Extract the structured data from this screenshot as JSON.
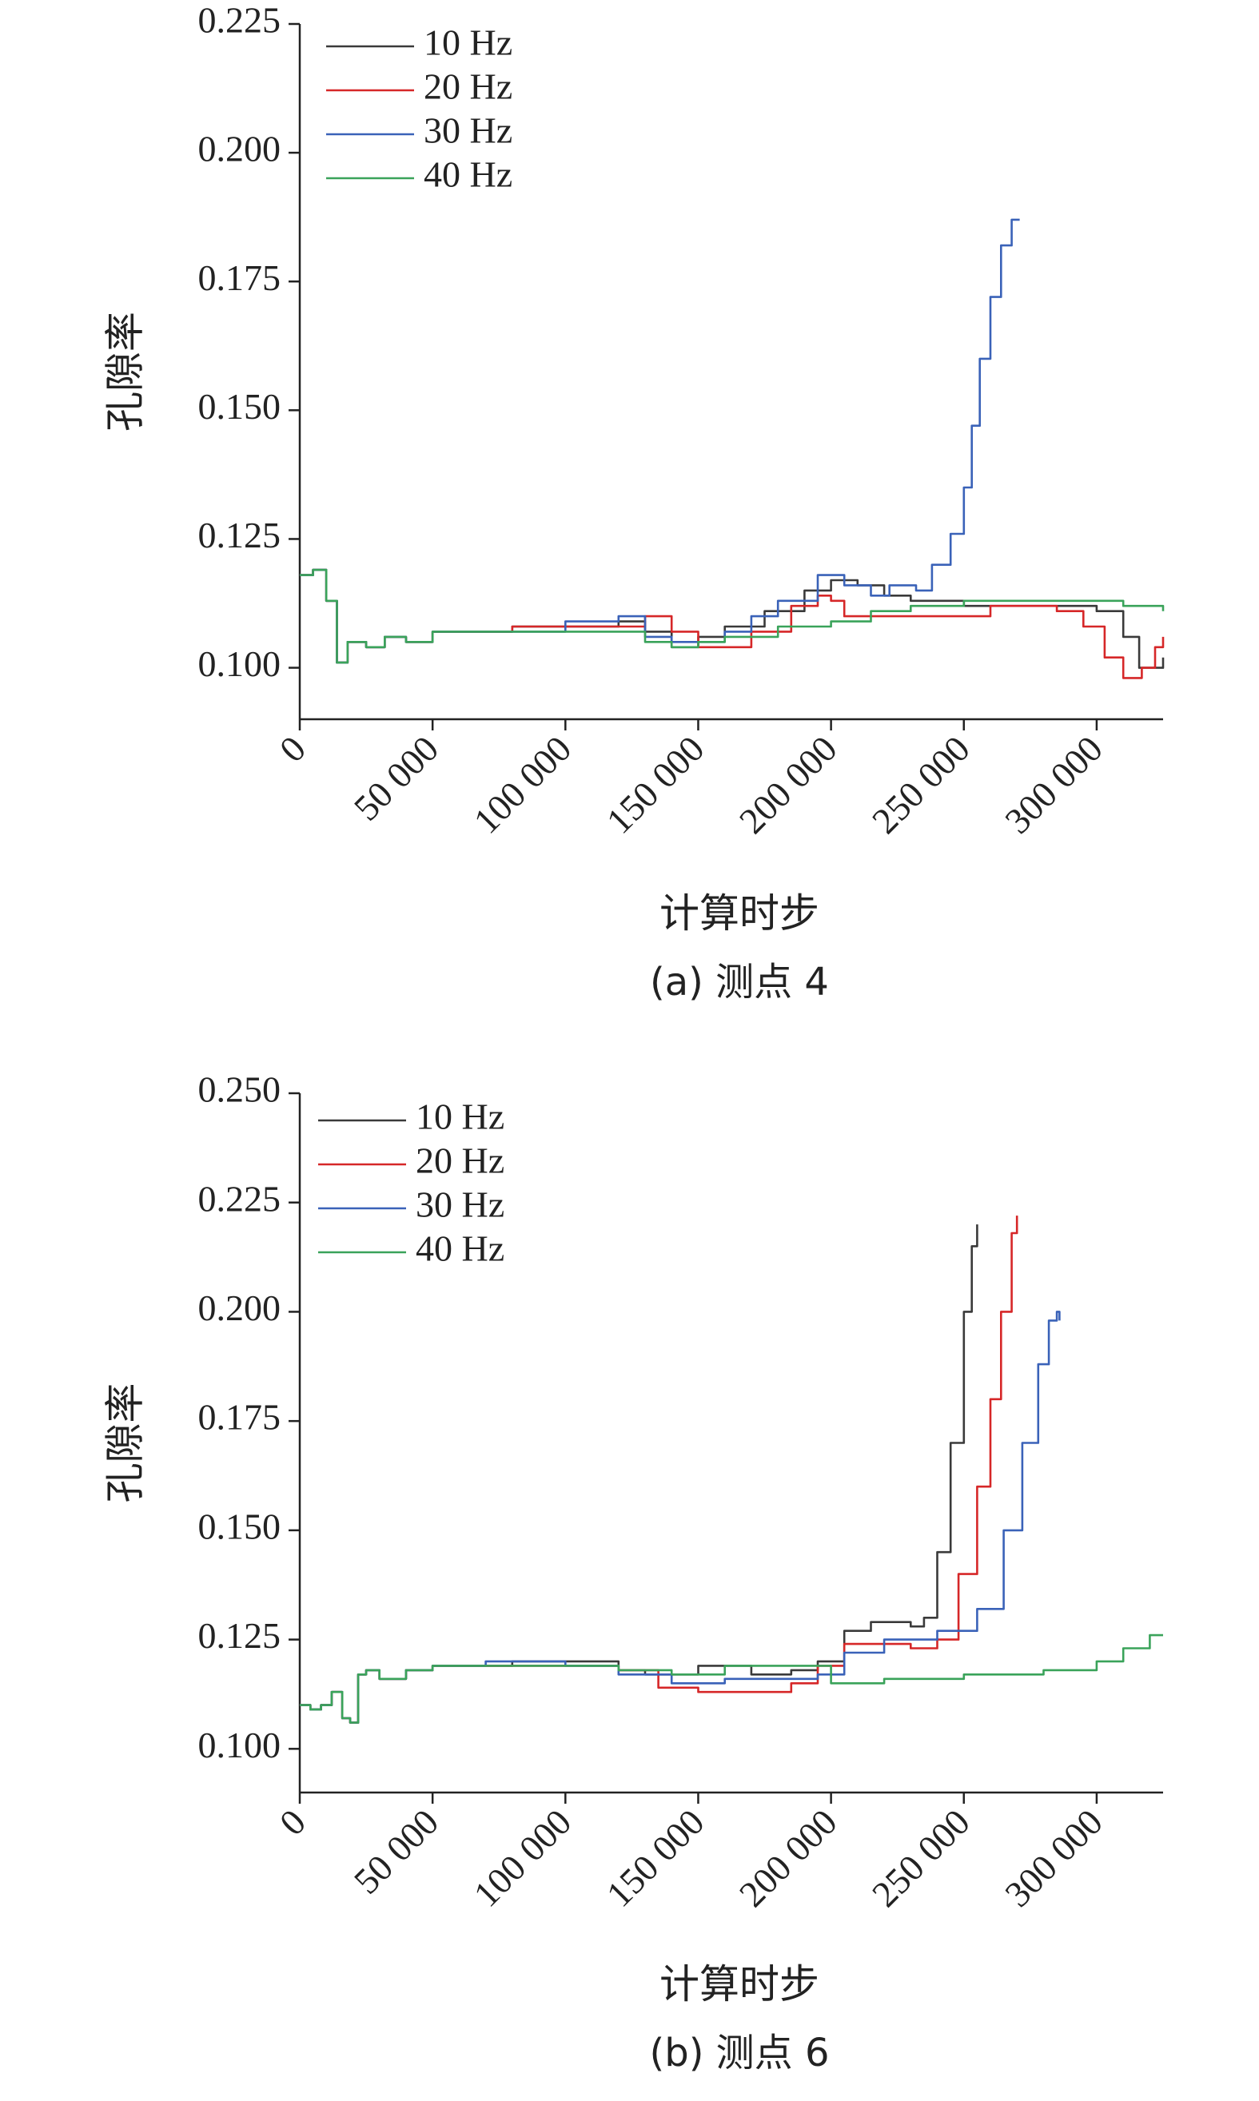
{
  "chart_data": [
    {
      "type": "line",
      "caption": "(a) 测点 4",
      "xlabel": "计算时步",
      "ylabel": "孔隙率",
      "xlim": [
        0,
        325000
      ],
      "ylim": [
        0.09,
        0.225
      ],
      "yticks": [
        "0.100",
        "0.125",
        "0.150",
        "0.175",
        "0.200",
        "0.225"
      ],
      "xticks": [
        "0",
        "50 000",
        "100 000",
        "150 000",
        "200 000",
        "250 000",
        "300 000"
      ],
      "legend_position": "top-left",
      "series": [
        {
          "name": "10 Hz",
          "color": "#3a3a3a",
          "points": [
            [
              0,
              0.118
            ],
            [
              5000,
              0.119
            ],
            [
              10000,
              0.113
            ],
            [
              14000,
              0.101
            ],
            [
              18000,
              0.105
            ],
            [
              25000,
              0.104
            ],
            [
              32000,
              0.106
            ],
            [
              40000,
              0.105
            ],
            [
              50000,
              0.107
            ],
            [
              80000,
              0.108
            ],
            [
              100000,
              0.108
            ],
            [
              120000,
              0.109
            ],
            [
              130000,
              0.107
            ],
            [
              140000,
              0.104
            ],
            [
              150000,
              0.106
            ],
            [
              160000,
              0.108
            ],
            [
              175000,
              0.111
            ],
            [
              190000,
              0.115
            ],
            [
              200000,
              0.117
            ],
            [
              210000,
              0.116
            ],
            [
              220000,
              0.114
            ],
            [
              230000,
              0.113
            ],
            [
              250000,
              0.112
            ],
            [
              280000,
              0.112
            ],
            [
              300000,
              0.111
            ],
            [
              310000,
              0.106
            ],
            [
              316000,
              0.1
            ],
            [
              320000,
              0.1
            ],
            [
              325000,
              0.102
            ]
          ]
        },
        {
          "name": "20 Hz",
          "color": "#d62728",
          "points": [
            [
              0,
              0.118
            ],
            [
              5000,
              0.119
            ],
            [
              10000,
              0.113
            ],
            [
              14000,
              0.101
            ],
            [
              18000,
              0.105
            ],
            [
              25000,
              0.104
            ],
            [
              32000,
              0.106
            ],
            [
              40000,
              0.105
            ],
            [
              50000,
              0.107
            ],
            [
              80000,
              0.108
            ],
            [
              100000,
              0.108
            ],
            [
              120000,
              0.108
            ],
            [
              130000,
              0.11
            ],
            [
              140000,
              0.107
            ],
            [
              150000,
              0.104
            ],
            [
              160000,
              0.104
            ],
            [
              170000,
              0.107
            ],
            [
              185000,
              0.112
            ],
            [
              195000,
              0.114
            ],
            [
              200000,
              0.113
            ],
            [
              205000,
              0.11
            ],
            [
              230000,
              0.11
            ],
            [
              260000,
              0.112
            ],
            [
              285000,
              0.111
            ],
            [
              295000,
              0.108
            ],
            [
              303000,
              0.102
            ],
            [
              310000,
              0.098
            ],
            [
              317000,
              0.1
            ],
            [
              322000,
              0.104
            ],
            [
              325000,
              0.106
            ]
          ]
        },
        {
          "name": "30 Hz",
          "color": "#3a62b8",
          "points": [
            [
              0,
              0.118
            ],
            [
              5000,
              0.119
            ],
            [
              10000,
              0.113
            ],
            [
              14000,
              0.101
            ],
            [
              18000,
              0.105
            ],
            [
              25000,
              0.104
            ],
            [
              32000,
              0.106
            ],
            [
              40000,
              0.105
            ],
            [
              50000,
              0.107
            ],
            [
              80000,
              0.107
            ],
            [
              100000,
              0.109
            ],
            [
              120000,
              0.11
            ],
            [
              130000,
              0.106
            ],
            [
              140000,
              0.105
            ],
            [
              150000,
              0.105
            ],
            [
              160000,
              0.107
            ],
            [
              170000,
              0.11
            ],
            [
              180000,
              0.113
            ],
            [
              195000,
              0.118
            ],
            [
              205000,
              0.116
            ],
            [
              215000,
              0.114
            ],
            [
              222000,
              0.116
            ],
            [
              232000,
              0.115
            ],
            [
              238000,
              0.12
            ],
            [
              245000,
              0.126
            ],
            [
              250000,
              0.135
            ],
            [
              253000,
              0.147
            ],
            [
              256000,
              0.16
            ],
            [
              260000,
              0.172
            ],
            [
              264000,
              0.182
            ],
            [
              268000,
              0.187
            ],
            [
              271000,
              0.187
            ]
          ]
        },
        {
          "name": "40 Hz",
          "color": "#3aa35a",
          "points": [
            [
              0,
              0.118
            ],
            [
              5000,
              0.119
            ],
            [
              10000,
              0.113
            ],
            [
              14000,
              0.101
            ],
            [
              18000,
              0.105
            ],
            [
              25000,
              0.104
            ],
            [
              32000,
              0.106
            ],
            [
              40000,
              0.105
            ],
            [
              50000,
              0.107
            ],
            [
              80000,
              0.107
            ],
            [
              100000,
              0.107
            ],
            [
              120000,
              0.107
            ],
            [
              125000,
              0.107
            ],
            [
              130000,
              0.105
            ],
            [
              140000,
              0.104
            ],
            [
              150000,
              0.105
            ],
            [
              160000,
              0.106
            ],
            [
              180000,
              0.108
            ],
            [
              200000,
              0.109
            ],
            [
              215000,
              0.111
            ],
            [
              230000,
              0.112
            ],
            [
              250000,
              0.113
            ],
            [
              270000,
              0.113
            ],
            [
              300000,
              0.113
            ],
            [
              310000,
              0.112
            ],
            [
              325000,
              0.111
            ]
          ]
        }
      ]
    },
    {
      "type": "line",
      "caption": "(b) 测点 6",
      "xlabel": "计算时步",
      "ylabel": "孔隙率",
      "xlim": [
        0,
        325000
      ],
      "ylim": [
        0.09,
        0.25
      ],
      "yticks": [
        "0.100",
        "0.125",
        "0.150",
        "0.175",
        "0.200",
        "0.225",
        "0.250"
      ],
      "xticks": [
        "0",
        "50 000",
        "100 000",
        "150 000",
        "200 000",
        "250 000",
        "300 000"
      ],
      "legend_position": "top-left",
      "series": [
        {
          "name": "10 Hz",
          "color": "#3a3a3a",
          "points": [
            [
              0,
              0.11
            ],
            [
              4000,
              0.109
            ],
            [
              8000,
              0.11
            ],
            [
              12000,
              0.113
            ],
            [
              16000,
              0.107
            ],
            [
              19000,
              0.106
            ],
            [
              22000,
              0.117
            ],
            [
              25000,
              0.118
            ],
            [
              30000,
              0.116
            ],
            [
              40000,
              0.118
            ],
            [
              50000,
              0.119
            ],
            [
              80000,
              0.12
            ],
            [
              100000,
              0.12
            ],
            [
              120000,
              0.118
            ],
            [
              130000,
              0.117
            ],
            [
              150000,
              0.119
            ],
            [
              170000,
              0.117
            ],
            [
              185000,
              0.118
            ],
            [
              195000,
              0.12
            ],
            [
              205000,
              0.127
            ],
            [
              215000,
              0.129
            ],
            [
              230000,
              0.128
            ],
            [
              235000,
              0.13
            ],
            [
              240000,
              0.145
            ],
            [
              245000,
              0.17
            ],
            [
              250000,
              0.2
            ],
            [
              253000,
              0.215
            ],
            [
              255000,
              0.22
            ]
          ]
        },
        {
          "name": "20 Hz",
          "color": "#d62728",
          "points": [
            [
              0,
              0.11
            ],
            [
              4000,
              0.109
            ],
            [
              8000,
              0.11
            ],
            [
              12000,
              0.113
            ],
            [
              16000,
              0.107
            ],
            [
              19000,
              0.106
            ],
            [
              22000,
              0.117
            ],
            [
              25000,
              0.118
            ],
            [
              30000,
              0.116
            ],
            [
              40000,
              0.118
            ],
            [
              50000,
              0.119
            ],
            [
              80000,
              0.119
            ],
            [
              100000,
              0.119
            ],
            [
              120000,
              0.118
            ],
            [
              135000,
              0.114
            ],
            [
              150000,
              0.113
            ],
            [
              170000,
              0.113
            ],
            [
              185000,
              0.115
            ],
            [
              195000,
              0.119
            ],
            [
              205000,
              0.124
            ],
            [
              220000,
              0.124
            ],
            [
              230000,
              0.123
            ],
            [
              240000,
              0.125
            ],
            [
              248000,
              0.14
            ],
            [
              255000,
              0.16
            ],
            [
              260000,
              0.18
            ],
            [
              264000,
              0.2
            ],
            [
              268000,
              0.218
            ],
            [
              270000,
              0.222
            ]
          ]
        },
        {
          "name": "30 Hz",
          "color": "#3a62b8",
          "points": [
            [
              0,
              0.11
            ],
            [
              4000,
              0.109
            ],
            [
              8000,
              0.11
            ],
            [
              12000,
              0.113
            ],
            [
              16000,
              0.107
            ],
            [
              19000,
              0.106
            ],
            [
              22000,
              0.117
            ],
            [
              25000,
              0.118
            ],
            [
              30000,
              0.116
            ],
            [
              40000,
              0.118
            ],
            [
              50000,
              0.119
            ],
            [
              70000,
              0.12
            ],
            [
              100000,
              0.119
            ],
            [
              120000,
              0.117
            ],
            [
              140000,
              0.115
            ],
            [
              160000,
              0.116
            ],
            [
              180000,
              0.116
            ],
            [
              195000,
              0.117
            ],
            [
              205000,
              0.122
            ],
            [
              220000,
              0.125
            ],
            [
              240000,
              0.127
            ],
            [
              255000,
              0.132
            ],
            [
              265000,
              0.15
            ],
            [
              272000,
              0.17
            ],
            [
              278000,
              0.188
            ],
            [
              282000,
              0.198
            ],
            [
              285000,
              0.2
            ],
            [
              286000,
              0.198
            ]
          ]
        },
        {
          "name": "40 Hz",
          "color": "#3aa35a",
          "points": [
            [
              0,
              0.11
            ],
            [
              4000,
              0.109
            ],
            [
              8000,
              0.11
            ],
            [
              12000,
              0.113
            ],
            [
              16000,
              0.107
            ],
            [
              19000,
              0.106
            ],
            [
              22000,
              0.117
            ],
            [
              25000,
              0.118
            ],
            [
              30000,
              0.116
            ],
            [
              40000,
              0.118
            ],
            [
              50000,
              0.119
            ],
            [
              100000,
              0.119
            ],
            [
              120000,
              0.118
            ],
            [
              140000,
              0.117
            ],
            [
              160000,
              0.119
            ],
            [
              190000,
              0.119
            ],
            [
              200000,
              0.115
            ],
            [
              220000,
              0.116
            ],
            [
              250000,
              0.117
            ],
            [
              280000,
              0.118
            ],
            [
              300000,
              0.12
            ],
            [
              310000,
              0.123
            ],
            [
              320000,
              0.126
            ],
            [
              325000,
              0.126
            ]
          ]
        }
      ]
    }
  ]
}
